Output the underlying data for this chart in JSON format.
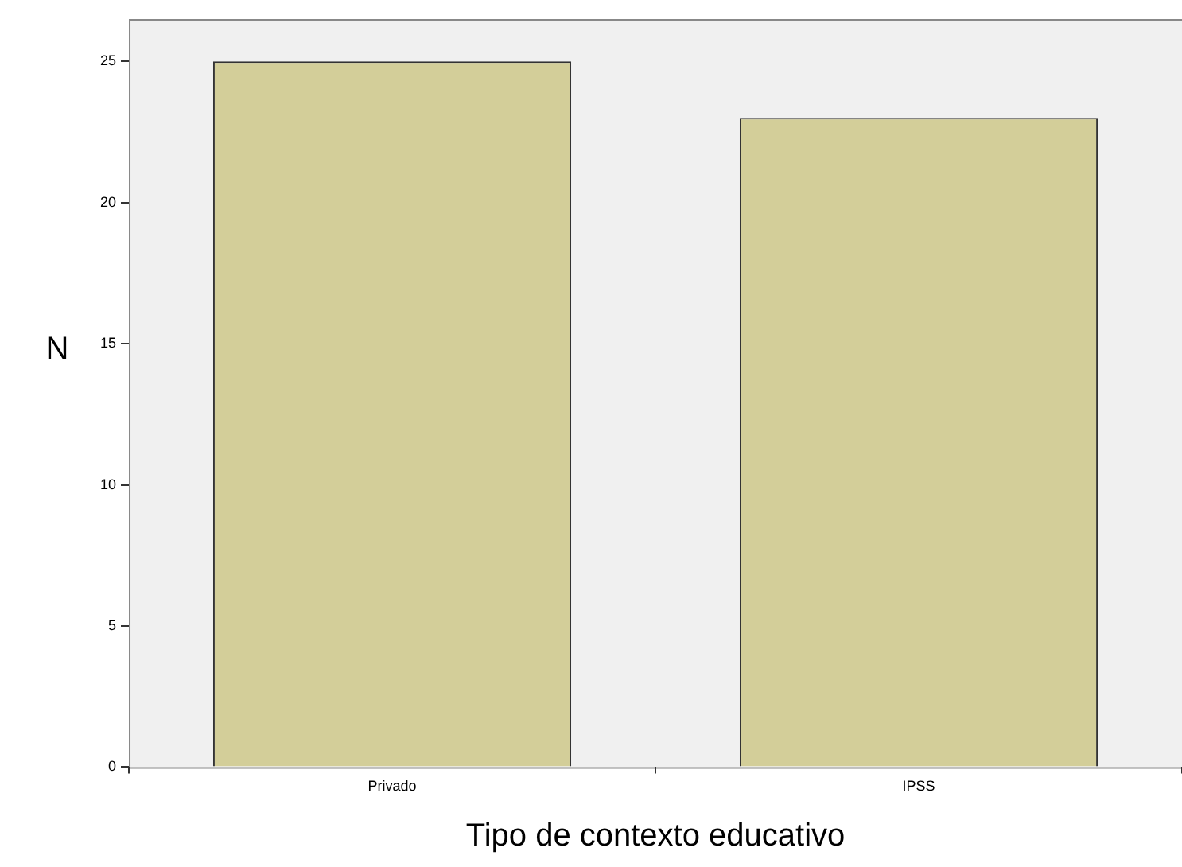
{
  "chart_data": {
    "type": "bar",
    "xlabel": "Tipo de contexto educativo",
    "ylabel": "N",
    "categories": [
      "Privado",
      "IPSS"
    ],
    "values": [
      25,
      23
    ],
    "color": "#d3ce99",
    "ylim": [
      0,
      26.5
    ],
    "yticks": [
      0,
      5,
      10,
      15,
      20,
      25
    ],
    "grid": false,
    "legend": false
  }
}
